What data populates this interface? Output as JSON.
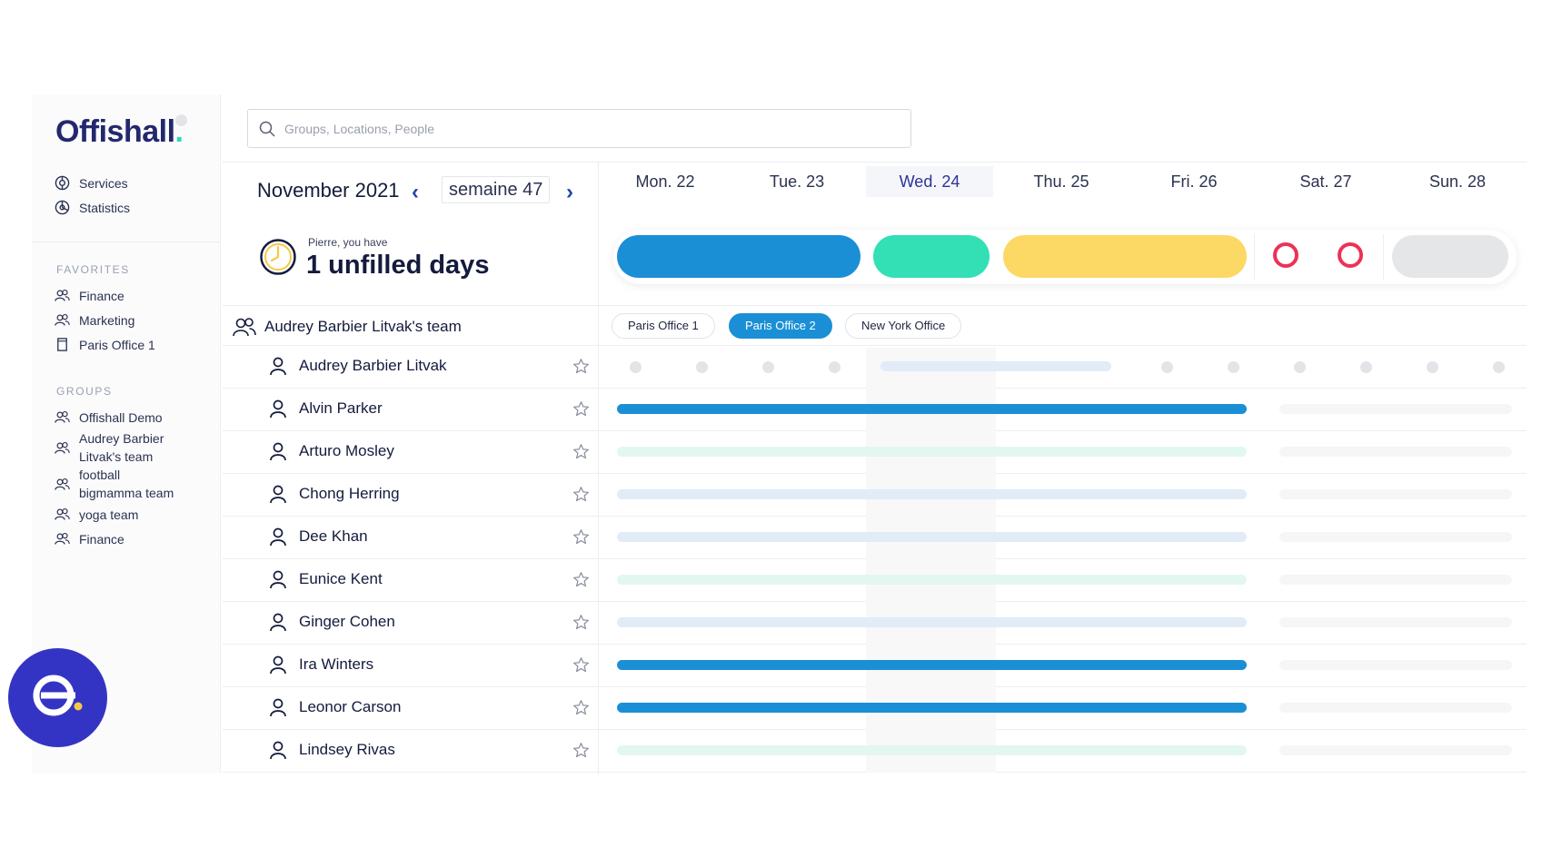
{
  "brand": {
    "name": "Offishall",
    "dot": "."
  },
  "search": {
    "placeholder": "Groups, Locations, People"
  },
  "sidebar": {
    "top_items": [
      {
        "label": "Services"
      },
      {
        "label": "Statistics"
      }
    ],
    "favorites_title": "FAVORITES",
    "favorites": [
      {
        "label": "Finance"
      },
      {
        "label": "Marketing"
      },
      {
        "label": "Paris Office 1"
      }
    ],
    "groups_title": "GROUPS",
    "groups": [
      {
        "label": "Offishall Demo"
      },
      {
        "label": "Audrey Barbier Litvak's team"
      },
      {
        "label": "football bigmamma team"
      },
      {
        "label": "yoga team"
      },
      {
        "label": "Finance"
      }
    ]
  },
  "calendar": {
    "month": "November 2021",
    "week": "semaine 47",
    "prev_icon": "chevron-left-icon",
    "next_icon": "chevron-right-icon",
    "days": [
      "Mon. 22",
      "Tue. 23",
      "Wed. 24",
      "Thu. 25",
      "Fri. 26",
      "Sat. 27",
      "Sun. 28"
    ],
    "today": "Wed. 24"
  },
  "unfilled": {
    "greeting": "Pierre, you have",
    "message": "1 unfilled days"
  },
  "team": {
    "name": "Audrey Barbier Litvak's team"
  },
  "offices": [
    {
      "label": "Paris Office 1",
      "active": false
    },
    {
      "label": "Paris Office 2",
      "active": true
    },
    {
      "label": "New York Office",
      "active": false
    }
  ],
  "people": [
    {
      "name": "Audrey Barbier Litvak"
    },
    {
      "name": "Alvin Parker"
    },
    {
      "name": "Arturo Mosley"
    },
    {
      "name": "Chong Herring"
    },
    {
      "name": "Dee Khan"
    },
    {
      "name": "Eunice Kent"
    },
    {
      "name": "Ginger Cohen"
    },
    {
      "name": "Ira Winters"
    },
    {
      "name": "Leonor Carson"
    },
    {
      "name": "Lindsey Rivas"
    }
  ],
  "colors": {
    "brand": "#23286e",
    "blue": "#1b8fd6",
    "teal": "#33dfb4",
    "yellow": "#fcd865",
    "grey": "#e5e6e8",
    "red": "#ee3155",
    "fab": "#3434c4"
  }
}
